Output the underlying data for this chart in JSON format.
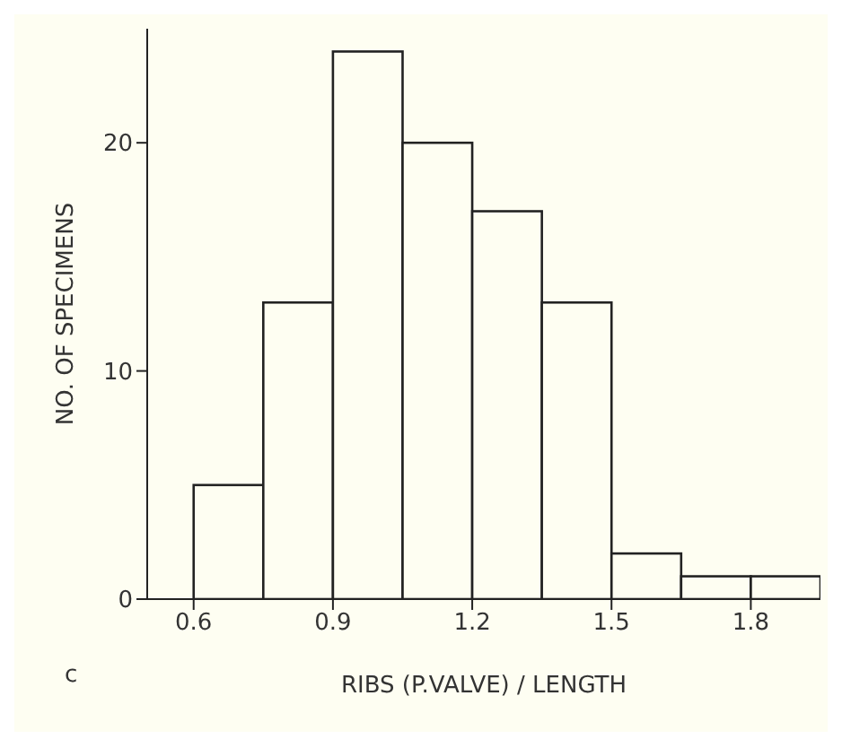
{
  "chart_data": {
    "type": "histogram",
    "xlabel": "RIBS (P.VALVE) / LENGTH",
    "ylabel": "NO. OF SPECIMENS",
    "bins": [
      0.6,
      0.75,
      0.9,
      1.05,
      1.2,
      1.35,
      1.5,
      1.65,
      1.8,
      1.95
    ],
    "values": [
      5,
      13,
      24,
      20,
      17,
      13,
      2,
      1,
      1
    ],
    "color": "#fefef2",
    "xlim": [
      0.5,
      1.95
    ],
    "xticks": [
      0.6,
      0.9,
      1.2,
      1.5,
      1.8
    ],
    "ylim": [
      0,
      25
    ],
    "yticks": [
      0,
      10,
      20
    ],
    "grid": false,
    "annotations": [
      "c"
    ]
  }
}
